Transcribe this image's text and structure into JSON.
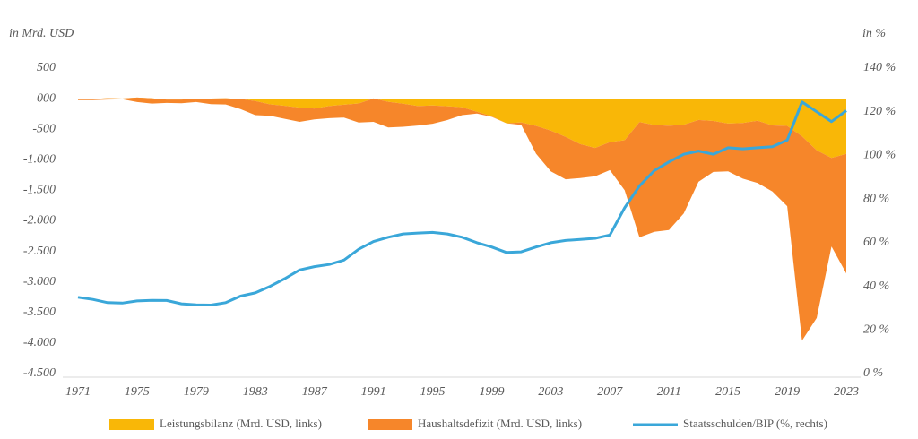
{
  "chart_data": {
    "type": "area",
    "y_label": "in Mrd. USD",
    "y2_label": "in %",
    "x": [
      1971,
      1972,
      1973,
      1974,
      1975,
      1976,
      1977,
      1978,
      1979,
      1980,
      1981,
      1982,
      1983,
      1984,
      1985,
      1986,
      1987,
      1988,
      1989,
      1990,
      1991,
      1992,
      1993,
      1994,
      1995,
      1996,
      1997,
      1998,
      1999,
      2000,
      2001,
      2002,
      2003,
      2004,
      2005,
      2006,
      2007,
      2008,
      2009,
      2010,
      2011,
      2012,
      2013,
      2014,
      2015,
      2016,
      2017,
      2018,
      2019,
      2020,
      2021,
      2022,
      2023
    ],
    "xlim": [
      1971,
      2023
    ],
    "xticks": [
      1971,
      1975,
      1979,
      1983,
      1987,
      1991,
      1995,
      1999,
      2003,
      2007,
      2011,
      2015,
      2019,
      2023
    ],
    "ylim": [
      -4500,
      500
    ],
    "yticks": [
      500,
      {
        "value": 0,
        "label": "000"
      },
      -500,
      {
        "value": -1000,
        "label": "-1.000"
      },
      {
        "value": -1500,
        "label": "-1.500"
      },
      {
        "value": -2000,
        "label": "-2.000"
      },
      {
        "value": -2500,
        "label": "-2.500"
      },
      {
        "value": -3000,
        "label": "-3.000"
      },
      {
        "value": -3500,
        "label": "-3.500"
      },
      {
        "value": -4000,
        "label": "-4.000"
      },
      {
        "value": -4500,
        "label": "-4.500"
      }
    ],
    "y2lim": [
      0,
      140
    ],
    "y2ticks": [
      {
        "value": 0,
        "label": "0 %"
      },
      {
        "value": 20,
        "label": "20 %"
      },
      {
        "value": 40,
        "label": "40 %"
      },
      {
        "value": 60,
        "label": "60 %"
      },
      {
        "value": 80,
        "label": "80 %"
      },
      {
        "value": 100,
        "label": "100 %"
      },
      {
        "value": 120,
        "label": "120 %"
      },
      {
        "value": 140,
        "label": "140 %"
      }
    ],
    "stacked": true,
    "legend": "bottom",
    "series": [
      {
        "name": "Leistungsbilanz (Mrd. USD, links)",
        "type": "area",
        "color": "#f9b707",
        "values": [
          -1,
          -6,
          7,
          2,
          18,
          4,
          -14,
          -15,
          0,
          2,
          5,
          -5,
          -38,
          -94,
          -118,
          -147,
          -161,
          -121,
          -99,
          -79,
          3,
          -51,
          -84,
          -121,
          -113,
          -125,
          -141,
          -215,
          -287,
          -403,
          -389,
          -446,
          -523,
          -625,
          -745,
          -806,
          -711,
          -681,
          -384,
          -431,
          -445,
          -426,
          -349,
          -365,
          -408,
          -397,
          -361,
          -439,
          -446,
          -616,
          -846,
          -971,
          -905
        ]
      },
      {
        "name": "Haushaltsdefizit (Mrd. USD, links)",
        "type": "area",
        "color": "#f6862a",
        "values": [
          -24,
          -19,
          -22,
          -12,
          -73,
          -84,
          -56,
          -60,
          -55,
          -92,
          -100,
          -165,
          -232,
          -186,
          -212,
          -233,
          -179,
          -199,
          -211,
          -311,
          -383,
          -419,
          -376,
          -319,
          -297,
          -225,
          -129,
          -30,
          -10,
          0,
          -40,
          -454,
          -667,
          -695,
          -555,
          -464,
          -459,
          -819,
          -1886,
          -1749,
          -1705,
          -1454,
          -1011,
          -835,
          -782,
          -913,
          -1019,
          -1081,
          -1314,
          -3344,
          -2744,
          -1449,
          -1955
        ]
      },
      {
        "name": "Staatsschulden/BIP (%, rechts)",
        "type": "line",
        "axis": "y2",
        "color": "#3aa7d9",
        "values": [
          35,
          34,
          32.5,
          32.3,
          33.3,
          33.6,
          33.5,
          32,
          31.5,
          31.4,
          32.5,
          35.5,
          37,
          40,
          43.5,
          47.5,
          49,
          50,
          52,
          57,
          60.5,
          62.5,
          64,
          64.4,
          64.7,
          64,
          62.5,
          60,
          58,
          55.5,
          55.8,
          58,
          60,
          61,
          61.5,
          62,
          63.5,
          76,
          86,
          93,
          97,
          100.5,
          102,
          100.5,
          103.5,
          103,
          103.5,
          104,
          107,
          124.5,
          120,
          115.5,
          120.5
        ]
      }
    ]
  }
}
